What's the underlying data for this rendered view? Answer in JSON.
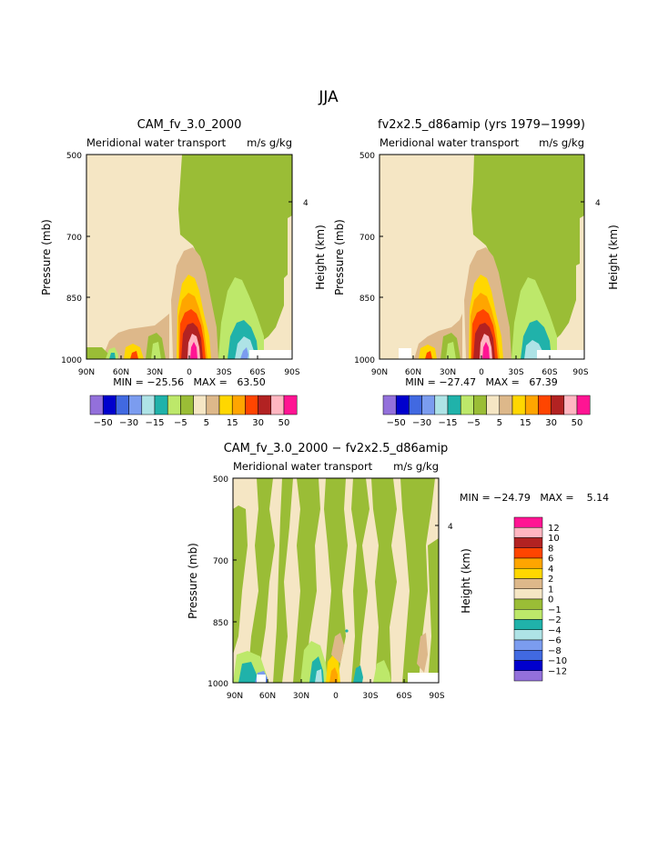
{
  "page_title": "JJA",
  "colors": {
    "purple": "#9370db",
    "navy": "#0000cd",
    "royal_blue": "#4169e1",
    "cornflower": "#7b9cef",
    "light_cyan": "#aee3e6",
    "teal": "#20b2aa",
    "light_green": "#bde86a",
    "olive_green": "#9abd36",
    "wheat": "#f5e6c4",
    "tan": "#ddb88a",
    "yellow": "#ffd700",
    "orange": "#ffa500",
    "orange_red": "#ff4500",
    "dark_red": "#b22222",
    "pink": "#ffb6c1",
    "magenta": "#ff1493"
  },
  "chart_data": [
    {
      "type": "heatmap",
      "title": "CAM_fv_3.0_2000",
      "subtitle": "Meridional water transport",
      "units": "m/s g/kg",
      "xlabel": "",
      "ylabel": "Pressure (mb)",
      "ylabel_right": "Height (km)",
      "x_ticks": [
        "90N",
        "60N",
        "30N",
        "0",
        "30S",
        "60S",
        "90S"
      ],
      "y_ticks": [
        "500",
        "700",
        "850",
        "1000"
      ],
      "right_ticks": [
        "4"
      ],
      "ylim": [
        1000,
        500
      ],
      "stats": "MIN = −25.56   MAX =   63.50",
      "min": -25.56,
      "max": 63.5,
      "colorbar_labels": [
        "−50",
        "−30",
        "−15",
        "−5",
        "5",
        "15",
        "30",
        "50"
      ]
    },
    {
      "type": "heatmap",
      "title": "fv2x2.5_d86amip (yrs 1979−1999)",
      "subtitle": "Meridional water transport",
      "units": "m/s g/kg",
      "xlabel": "",
      "ylabel": "Pressure (mb)",
      "ylabel_right": "Height (km)",
      "x_ticks": [
        "90N",
        "60N",
        "30N",
        "0",
        "30S",
        "60S",
        "90S"
      ],
      "y_ticks": [
        "500",
        "700",
        "850",
        "1000"
      ],
      "right_ticks": [
        "4"
      ],
      "ylim": [
        1000,
        500
      ],
      "stats": "MIN = −27.47   MAX =   67.39",
      "min": -27.47,
      "max": 67.39,
      "colorbar_labels": [
        "−50",
        "−30",
        "−15",
        "−5",
        "5",
        "15",
        "30",
        "50"
      ]
    },
    {
      "type": "heatmap",
      "title": "CAM_fv_3.0_2000 − fv2x2.5_d86amip",
      "subtitle": "Meridional water transport",
      "units": "m/s g/kg",
      "xlabel": "",
      "ylabel": "Pressure (mb)",
      "ylabel_right": "Height (km)",
      "x_ticks": [
        "90N",
        "60N",
        "30N",
        "0",
        "30S",
        "60S",
        "90S"
      ],
      "y_ticks": [
        "500",
        "700",
        "850",
        "1000"
      ],
      "right_ticks": [
        "4"
      ],
      "ylim": [
        1000,
        500
      ],
      "stats": "MIN = −24.79   MAX =    5.14",
      "min": -24.79,
      "max": 5.14,
      "colorbar_labels": [
        "12",
        "10",
        "8",
        "6",
        "4",
        "2",
        "1",
        "0",
        "−1",
        "−2",
        "−4",
        "−6",
        "−8",
        "−10",
        "−12"
      ]
    }
  ]
}
